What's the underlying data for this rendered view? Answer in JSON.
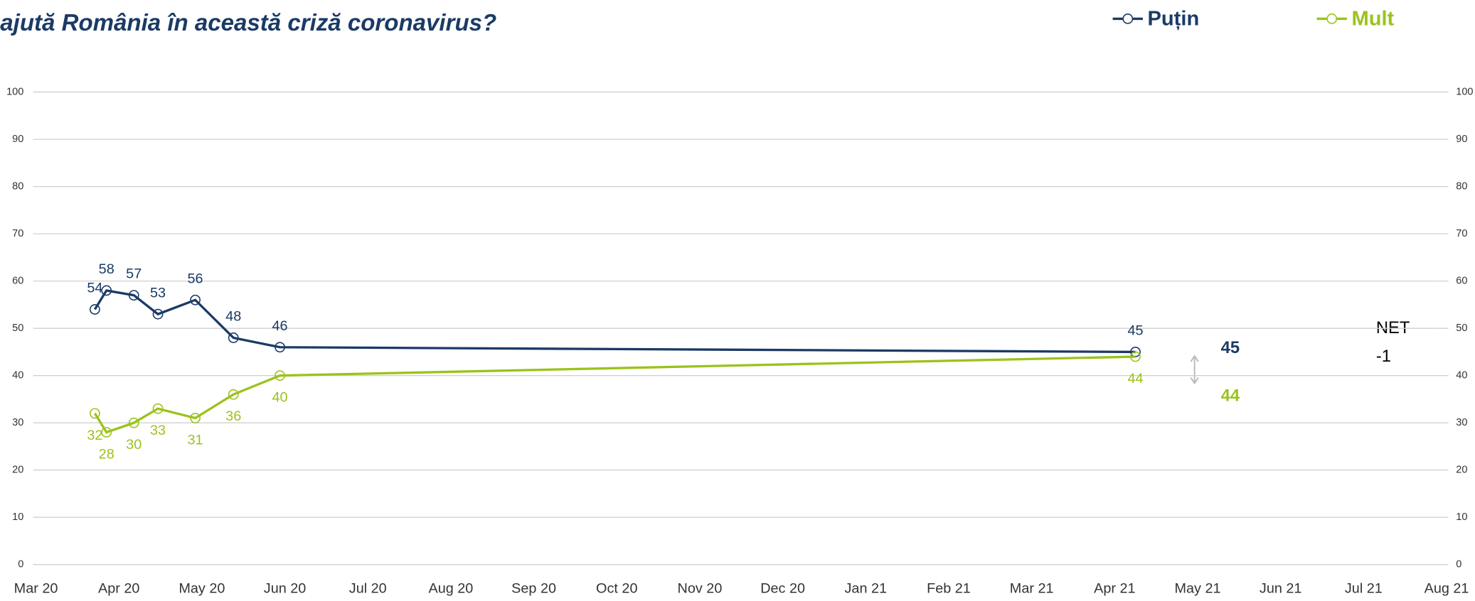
{
  "chart_data": {
    "type": "line",
    "title": "ajută România în această criză coronavirus?",
    "x": [
      0.71,
      0.85,
      1.18,
      1.47,
      1.92,
      2.38,
      2.94,
      13.25
    ],
    "xlim": [
      0,
      17
    ],
    "xticks": [
      {
        "value": 0,
        "label": "Mar 20"
      },
      {
        "value": 1,
        "label": "Apr 20"
      },
      {
        "value": 2,
        "label": "May 20"
      },
      {
        "value": 3,
        "label": "Jun 20"
      },
      {
        "value": 4,
        "label": "Jul 20"
      },
      {
        "value": 5,
        "label": "Aug 20"
      },
      {
        "value": 6,
        "label": "Sep 20"
      },
      {
        "value": 7,
        "label": "Oct 20"
      },
      {
        "value": 8,
        "label": "Nov 20"
      },
      {
        "value": 9,
        "label": "Dec 20"
      },
      {
        "value": 10,
        "label": "Jan 21"
      },
      {
        "value": 11,
        "label": "Feb 21"
      },
      {
        "value": 12,
        "label": "Mar 21"
      },
      {
        "value": 13,
        "label": "Apr 21"
      },
      {
        "value": 14,
        "label": "May 21"
      },
      {
        "value": 15,
        "label": "Jun 21"
      },
      {
        "value": 16,
        "label": "Jul 21"
      },
      {
        "value": 17,
        "label": "Aug 21"
      }
    ],
    "ylim": [
      0,
      100
    ],
    "yticks": [
      0,
      10,
      20,
      30,
      40,
      50,
      60,
      70,
      80,
      90,
      100
    ],
    "y2lim": [
      0,
      100
    ],
    "y2ticks": [
      0,
      10,
      20,
      30,
      40,
      50,
      60,
      70,
      80,
      90,
      100
    ],
    "grid": true,
    "legend": "top-right",
    "series": [
      {
        "name": "Puțin",
        "color": "#1b3a66",
        "values": [
          54,
          58,
          57,
          53,
          56,
          48,
          46,
          45
        ]
      },
      {
        "name": "Mult",
        "color": "#9bc21b",
        "values": [
          32,
          28,
          30,
          33,
          31,
          36,
          40,
          44
        ]
      }
    ],
    "annotations": {
      "last_putin": "45",
      "last_mult": "44",
      "net_label": "NET",
      "net_value": "-1"
    }
  }
}
